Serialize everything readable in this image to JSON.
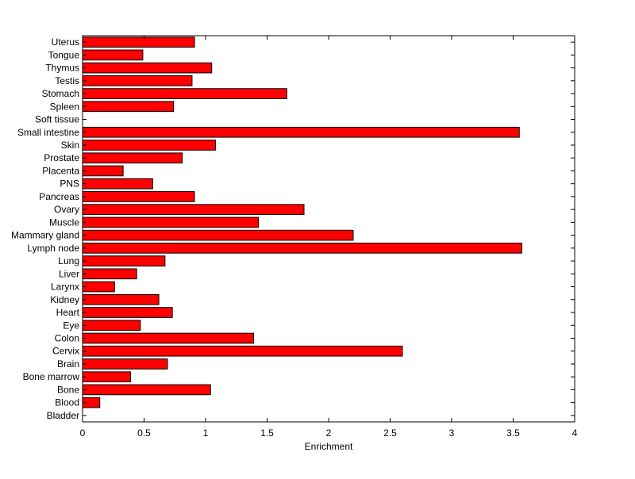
{
  "chart_data": {
    "type": "bar",
    "orientation": "horizontal",
    "title": "",
    "xlabel": "Enrichment",
    "ylabel": "",
    "xlim": [
      0,
      4
    ],
    "xticks": [
      0,
      0.5,
      1,
      1.5,
      2,
      2.5,
      3,
      3.5,
      4
    ],
    "xtick_labels": [
      "0",
      "0.5",
      "1",
      "1.5",
      "2",
      "2.5",
      "3",
      "3.5",
      "4"
    ],
    "grid": false,
    "legend": "none",
    "bar_color": "#ff0000",
    "categories": [
      "Bladder",
      "Blood",
      "Bone",
      "Bone marrow",
      "Brain",
      "Cervix",
      "Colon",
      "Eye",
      "Heart",
      "Kidney",
      "Larynx",
      "Liver",
      "Lung",
      "Lymph node",
      "Mammary gland",
      "Muscle",
      "Ovary",
      "Pancreas",
      "PNS",
      "Placenta",
      "Prostate",
      "Skin",
      "Small intestine",
      "Soft tissue",
      "Spleen",
      "Stomach",
      "Testis",
      "Thymus",
      "Tongue",
      "Uterus"
    ],
    "values": [
      0,
      0.14,
      1.04,
      0.39,
      0.69,
      2.6,
      1.39,
      0.47,
      0.73,
      0.62,
      0.26,
      0.44,
      0.67,
      3.57,
      2.2,
      1.43,
      1.8,
      0.91,
      0.57,
      0.33,
      0.81,
      1.08,
      3.55,
      0,
      0.74,
      1.66,
      0.89,
      1.05,
      0.49,
      0.91
    ]
  }
}
